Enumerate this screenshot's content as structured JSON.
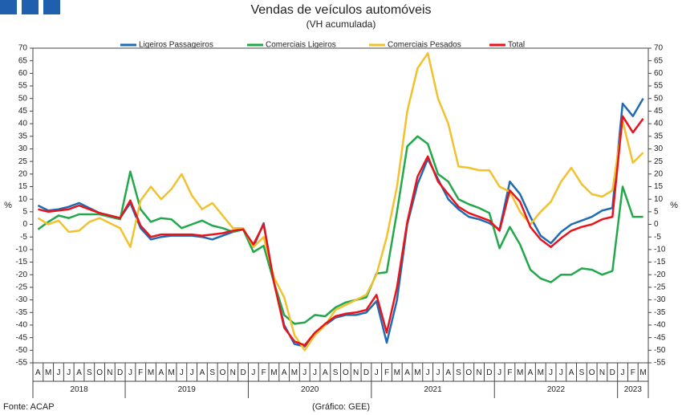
{
  "chart_data": {
    "type": "line",
    "title": "Vendas de veículos automóveis",
    "subtitle": "(VH acumulada)",
    "y_label": "%",
    "source": "Fonte: ACAP",
    "credit": "(Gráfico: GEE)",
    "categories": [
      "A",
      "M",
      "J",
      "J",
      "A",
      "S",
      "O",
      "N",
      "D",
      "J",
      "F",
      "M",
      "A",
      "M",
      "J",
      "J",
      "A",
      "S",
      "O",
      "N",
      "D",
      "J",
      "F",
      "M",
      "A",
      "M",
      "J",
      "J",
      "A",
      "S",
      "O",
      "N",
      "D",
      "J",
      "F",
      "M",
      "A",
      "M",
      "J",
      "J",
      "A",
      "S",
      "O",
      "N",
      "D",
      "J",
      "F",
      "M",
      "A",
      "M",
      "J",
      "J",
      "A",
      "S",
      "O",
      "N",
      "D",
      "J",
      "F",
      "M"
    ],
    "years": [
      "2018",
      "2019",
      "2020",
      "2021",
      "2022",
      "2023"
    ],
    "ylim": [
      -55,
      70
    ],
    "yticks": [
      -55,
      -50,
      -45,
      -40,
      -35,
      -30,
      -25,
      -20,
      -15,
      -10,
      -5,
      0,
      5,
      10,
      15,
      20,
      25,
      30,
      35,
      40,
      45,
      50,
      55,
      60,
      65,
      70
    ],
    "series": [
      {
        "name": "Ligeiros Passageiros",
        "color": "#1f6bb5",
        "values": [
          7.5,
          5.5,
          6,
          7,
          8.5,
          6.5,
          4.5,
          3.5,
          2.5,
          8.5,
          -1.5,
          -6,
          -5,
          -4.5,
          -4.5,
          -4.5,
          -5,
          -6,
          -4.5,
          -3,
          -2,
          -9,
          0.5,
          -23,
          -40,
          -47.5,
          -48.5,
          -44,
          -40,
          -37,
          -36,
          -36,
          -35,
          -30.5,
          -47,
          -30,
          0,
          16,
          26,
          18,
          10,
          6,
          3,
          2,
          0.5,
          -2,
          17,
          12,
          3,
          -4.5,
          -7.5,
          -3,
          0,
          1.5,
          3,
          5.5,
          6.5,
          48,
          43,
          50
        ]
      },
      {
        "name": "Comerciais Ligeiros",
        "color": "#22a84a",
        "values": [
          -2,
          1,
          3.5,
          2.5,
          4,
          4,
          4,
          3,
          2,
          21,
          6,
          1,
          2.5,
          2,
          -1.5,
          0,
          1.5,
          -0.5,
          -1.5,
          -3,
          -2,
          -11,
          -8.5,
          -23,
          -36,
          -39.5,
          -39,
          -36,
          -36.5,
          -33,
          -31,
          -30,
          -29,
          -19.5,
          -19,
          5,
          31,
          35,
          32,
          20,
          17,
          10,
          8,
          6.5,
          4.5,
          -9.5,
          -1,
          -8,
          -18,
          -21.5,
          -23,
          -20,
          -20,
          -17.5,
          -18,
          -20,
          -18.5,
          15,
          3,
          3
        ]
      },
      {
        "name": "Comerciais Pesados",
        "color": "#f2c12e",
        "values": [
          2.5,
          0,
          1.5,
          -3,
          -2.5,
          1,
          2.5,
          0.5,
          -1.5,
          -9,
          9.5,
          15,
          10,
          14,
          20,
          11.5,
          6,
          8.5,
          3.5,
          -1.5,
          -1.5,
          -9,
          -5,
          -21,
          -29,
          -44,
          -50,
          -44,
          -40,
          -34,
          -32,
          -30,
          -28,
          -20,
          -5,
          15,
          45,
          62,
          68,
          50,
          40,
          23,
          22.5,
          21.5,
          21.5,
          15,
          13,
          5,
          0,
          5,
          9,
          17,
          22.5,
          16,
          12,
          11,
          13.5,
          41,
          24.5,
          28.5
        ]
      },
      {
        "name": "Total",
        "color": "#e8141b",
        "values": [
          6,
          5,
          5.5,
          6,
          7.5,
          6,
          4.5,
          3.5,
          2.5,
          9.5,
          -0.5,
          -5,
          -4,
          -4,
          -4,
          -4,
          -4.5,
          -4,
          -3.5,
          -2.5,
          -2,
          -8,
          0,
          -23,
          -41,
          -46.5,
          -48,
          -43,
          -39.5,
          -36.5,
          -35.5,
          -35,
          -34,
          -28,
          -43,
          -25,
          1,
          19,
          27,
          17,
          12,
          7,
          4.5,
          3,
          1.5,
          -2.5,
          13.5,
          9,
          -1,
          -6,
          -9,
          -5.5,
          -2.5,
          -1,
          0,
          2,
          3,
          43,
          36.5,
          42
        ]
      }
    ]
  }
}
